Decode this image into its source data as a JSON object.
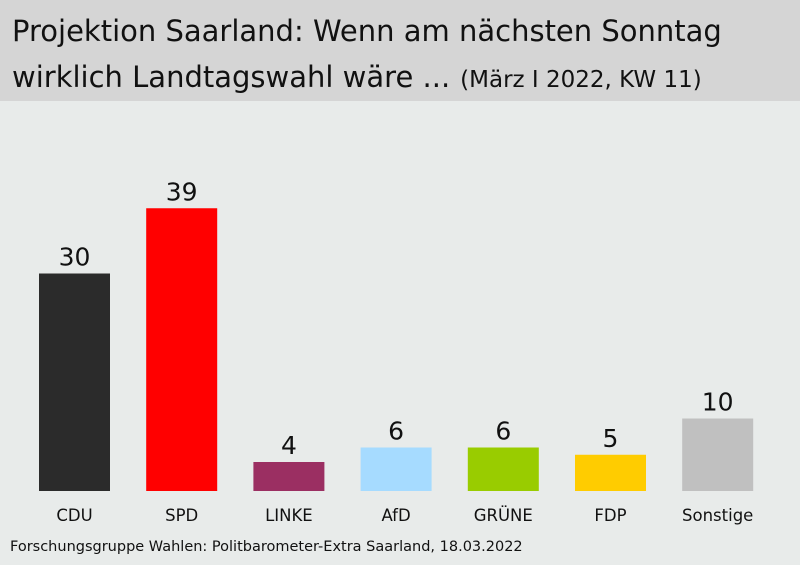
{
  "header": {
    "title_line1": "Projektion Saarland: Wenn am nächsten Sonntag",
    "title_line2": "wirklich Landtagswahl wäre ...",
    "subtitle": "(März I 2022, KW 11)"
  },
  "footer": {
    "source": "Forschungsgruppe Wahlen: Politbarometer-Extra Saarland, 18.03.2022"
  },
  "chart_data": {
    "type": "bar",
    "title": "Projektion Saarland: Wenn am nächsten Sonntag wirklich Landtagswahl wäre ... (März I 2022, KW 11)",
    "categories": [
      "CDU",
      "SPD",
      "LINKE",
      "AfD",
      "GRÜNE",
      "FDP",
      "Sonstige"
    ],
    "values": [
      30,
      39,
      4,
      6,
      6,
      5,
      10
    ],
    "colors": [
      "#2b2b2b",
      "#ff0000",
      "#9b2f62",
      "#a6dbff",
      "#99cc00",
      "#ffcc00",
      "#c0c0c0"
    ],
    "data_labels": true,
    "axes_visible": false,
    "grid": false,
    "legend": "none"
  }
}
